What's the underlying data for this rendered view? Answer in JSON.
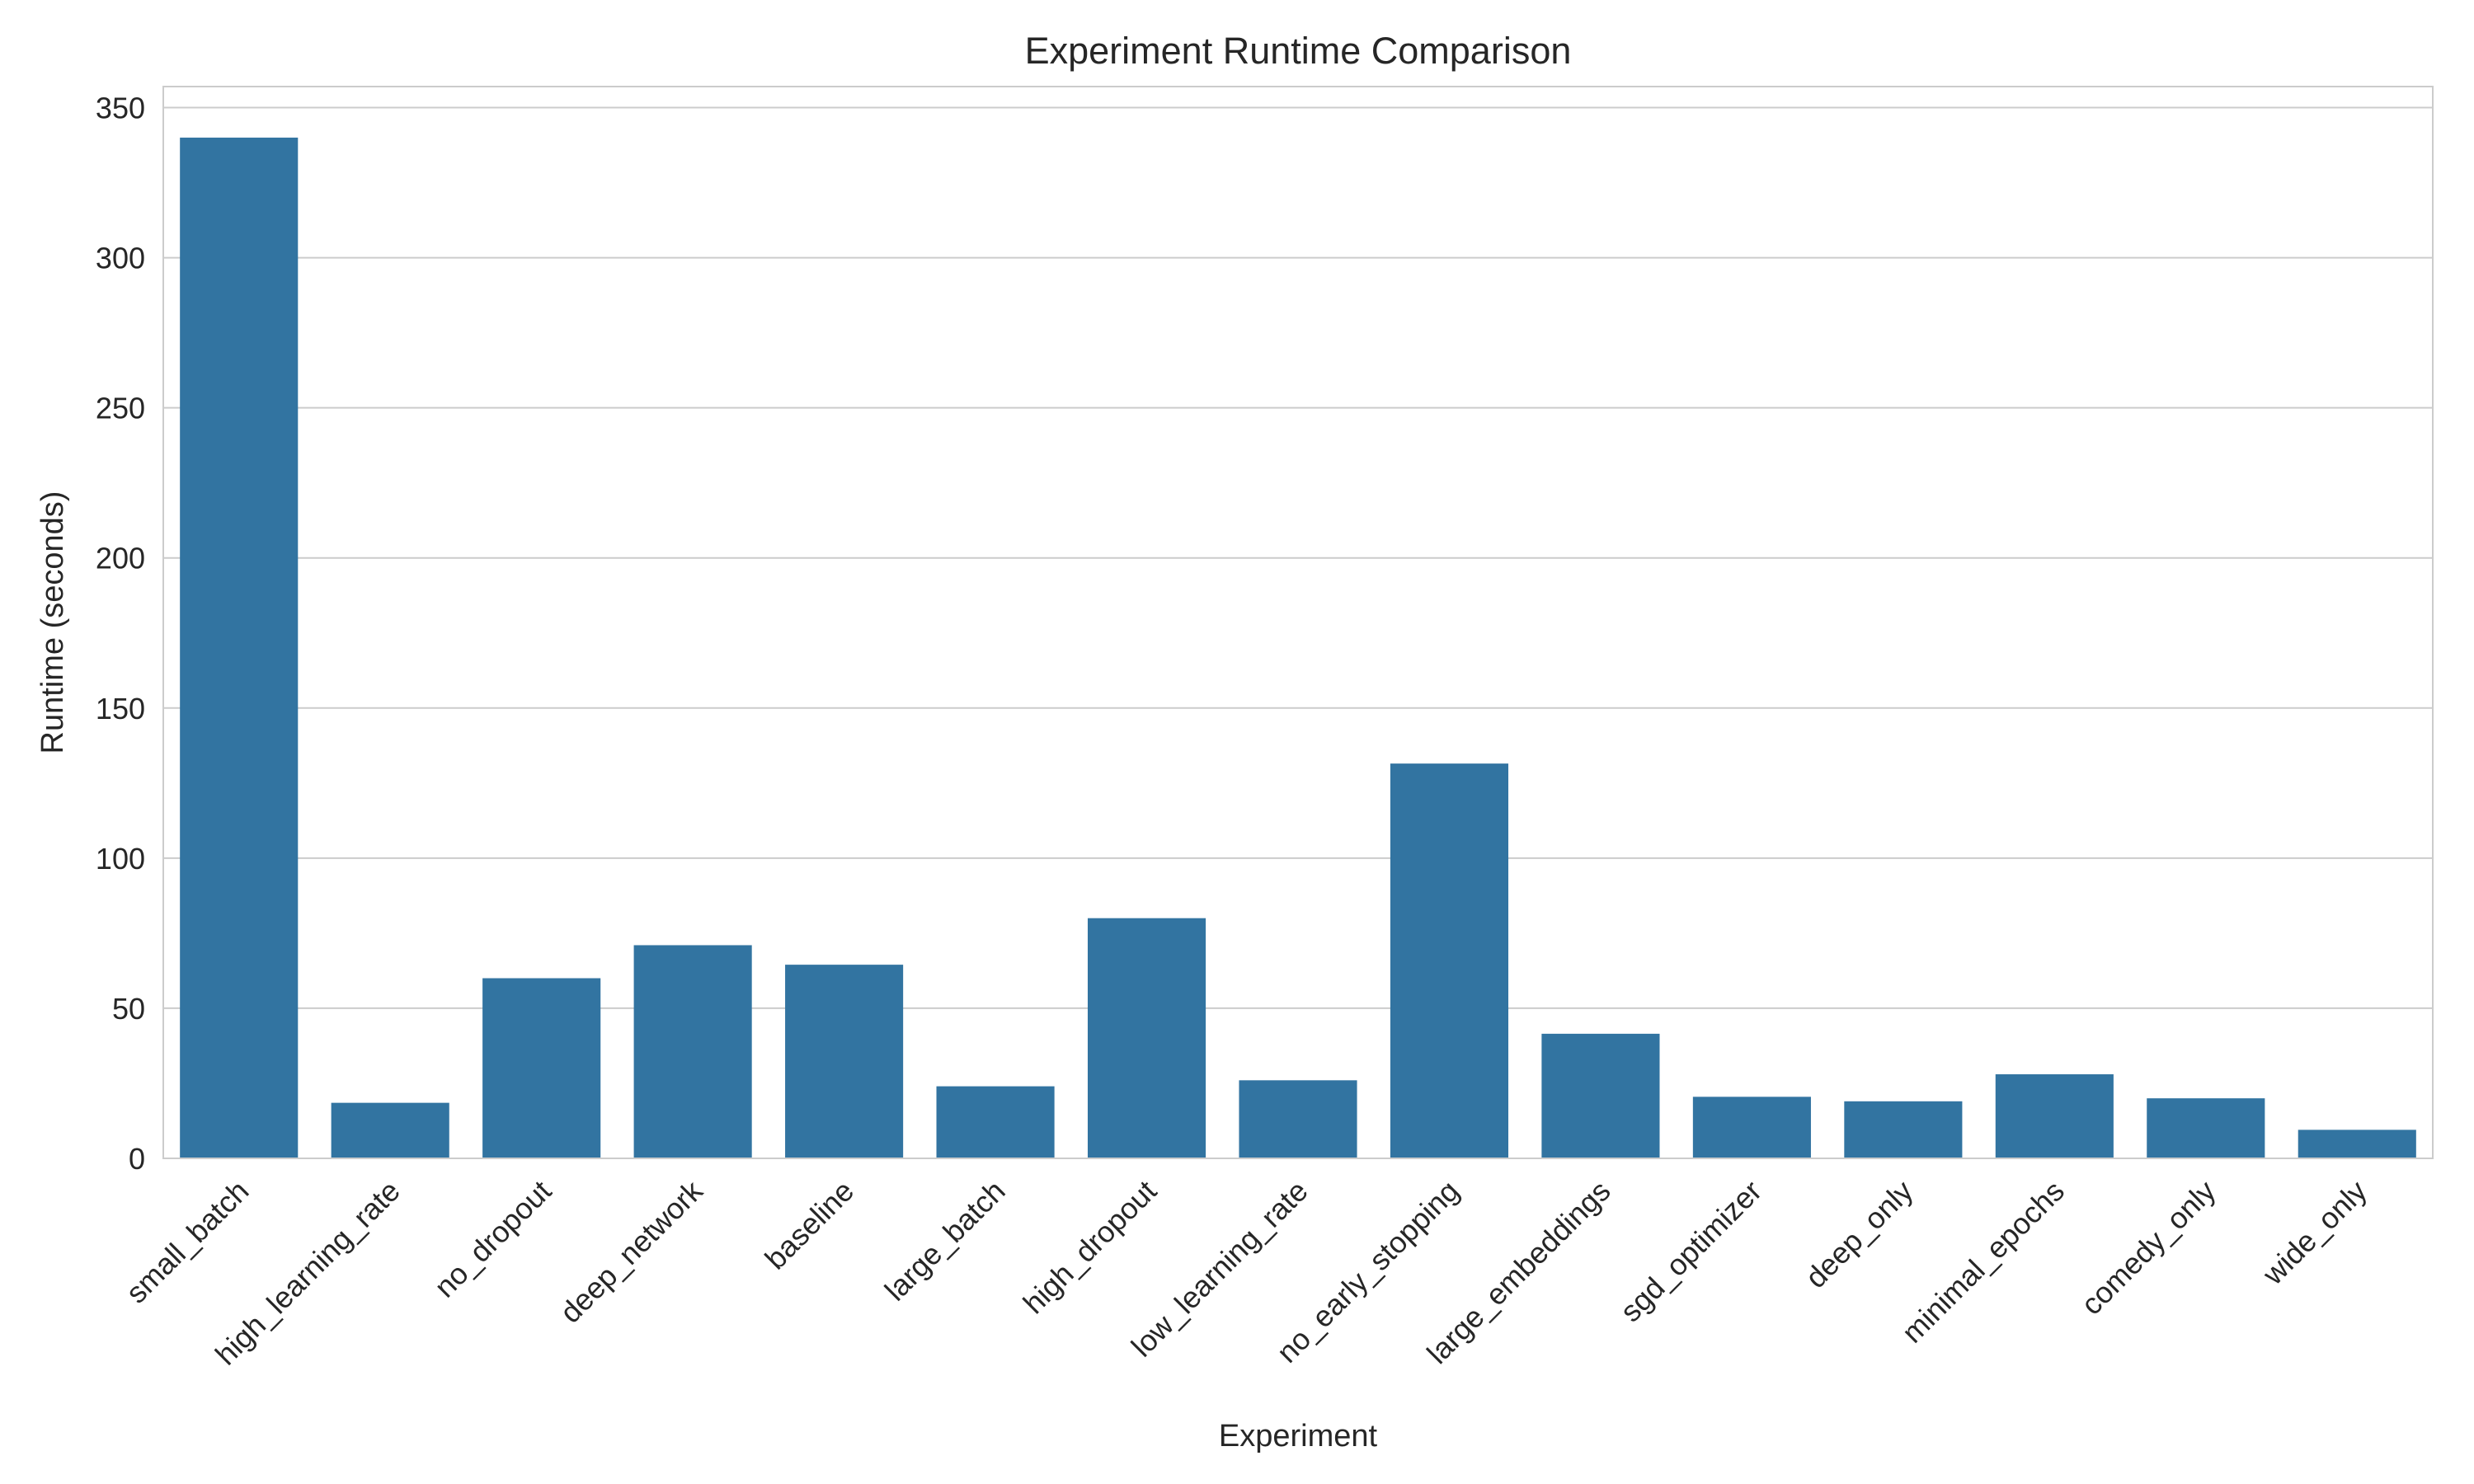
{
  "chart_data": {
    "type": "bar",
    "title": "Experiment Runtime Comparison",
    "xlabel": "Experiment",
    "ylabel": "Runtime (seconds)",
    "categories": [
      "small_batch",
      "high_learning_rate",
      "no_dropout",
      "deep_network",
      "baseline",
      "large_batch",
      "high_dropout",
      "low_learning_rate",
      "no_early_stopping",
      "large_embeddings",
      "sgd_optimizer",
      "deep_only",
      "minimal_epochs",
      "comedy_only",
      "wide_only"
    ],
    "values": [
      340,
      18.5,
      60,
      71,
      64.5,
      24,
      80,
      26,
      131.5,
      41.5,
      20.5,
      19,
      28,
      20,
      9.5
    ],
    "ylim": [
      0,
      357
    ],
    "yticks": [
      0,
      50,
      100,
      150,
      200,
      250,
      300,
      350
    ],
    "grid": true,
    "colors": {
      "bar": "#3274a1",
      "grid": "#cccccc",
      "frame": "#cccccc",
      "text": "#262626"
    }
  }
}
